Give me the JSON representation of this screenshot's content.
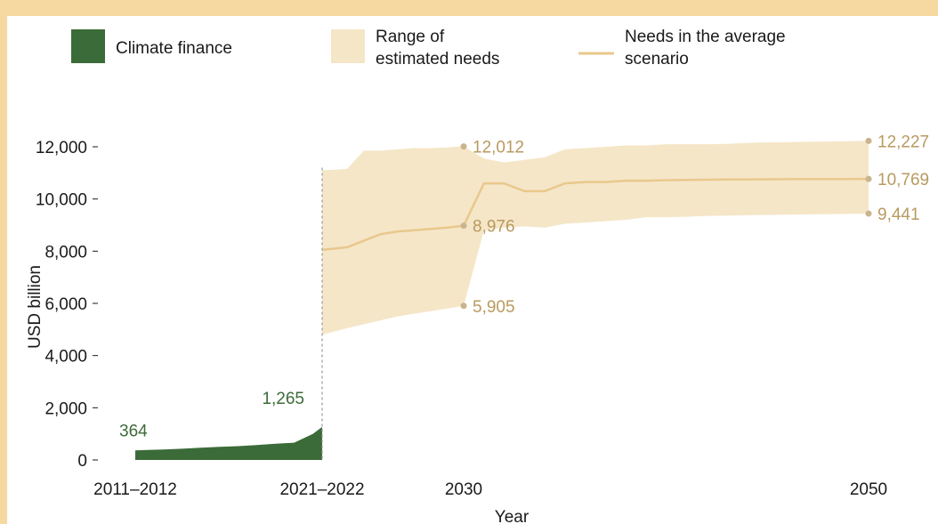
{
  "chart_data": {
    "type": "area",
    "xlabel": "Year",
    "ylabel": "USD billion",
    "ylim": [
      0,
      12000
    ],
    "yticks": [
      "0",
      "2,000",
      "4,000",
      "6,000",
      "8,000",
      "10,000",
      "12,000"
    ],
    "x_categories": [
      "2011–2012",
      "2021–2022",
      "2030",
      "2050"
    ],
    "legend": {
      "placement": "top",
      "items": [
        {
          "label": "Climate finance",
          "color": "#3b6b39",
          "kind": "square"
        },
        {
          "label_lines": [
            "Range of",
            "estimated needs"
          ],
          "color": "#f5e6c8",
          "kind": "square"
        },
        {
          "label_lines": [
            "Needs in the average",
            "scenario"
          ],
          "color": "#e8c88c",
          "kind": "line"
        }
      ]
    },
    "colors": {
      "finance": "#3b6b39",
      "range": "#f5e6c8",
      "average": "#e8c88c",
      "label_green": "#3d6b3a",
      "label_tan": "#b99a5f",
      "marker": "#c9b48d"
    },
    "series": {
      "climate_finance": {
        "x": [
          2011.5,
          2012,
          2013,
          2014,
          2015,
          2016,
          2017,
          2018,
          2019,
          2020,
          2021,
          2021.5
        ],
        "values": [
          364,
          380,
          400,
          430,
          470,
          500,
          530,
          570,
          620,
          660,
          1000,
          1265
        ]
      },
      "range_estimated_needs": {
        "x": [
          2021.5,
          2023,
          2024,
          2025,
          2026,
          2027,
          2028,
          2029,
          2030,
          2031,
          2032,
          2033,
          2034,
          2035,
          2036,
          2037,
          2038,
          2039,
          2040,
          2041,
          2042,
          2043,
          2044,
          2045,
          2046,
          2047,
          2048,
          2049,
          2050
        ],
        "upper": [
          11100,
          11150,
          11850,
          11850,
          11900,
          11950,
          11950,
          11980,
          12012,
          11550,
          11400,
          11500,
          11600,
          11900,
          11950,
          12000,
          12050,
          12050,
          12100,
          12100,
          12100,
          12110,
          12150,
          12170,
          12180,
          12190,
          12200,
          12210,
          12227
        ],
        "lower": [
          4800,
          5050,
          5200,
          5350,
          5500,
          5600,
          5700,
          5800,
          5905,
          8800,
          8900,
          8950,
          8900,
          9050,
          9100,
          9150,
          9200,
          9300,
          9300,
          9320,
          9350,
          9360,
          9380,
          9390,
          9400,
          9410,
          9420,
          9430,
          9441
        ]
      },
      "needs_average_scenario": {
        "x": [
          2021.5,
          2023,
          2024,
          2025,
          2026,
          2027,
          2028,
          2029,
          2030,
          2031,
          2032,
          2033,
          2034,
          2035,
          2036,
          2037,
          2038,
          2039,
          2040,
          2041,
          2042,
          2043,
          2044,
          2045,
          2046,
          2047,
          2048,
          2049,
          2050
        ],
        "values": [
          8050,
          8150,
          8400,
          8650,
          8750,
          8800,
          8850,
          8900,
          8976,
          10600,
          10600,
          10300,
          10300,
          10600,
          10650,
          10650,
          10700,
          10700,
          10720,
          10730,
          10740,
          10750,
          10750,
          10755,
          10760,
          10762,
          10764,
          10766,
          10769
        ]
      }
    },
    "annotations": [
      {
        "text": "364",
        "x": 2011.5,
        "y": 364,
        "color": "green"
      },
      {
        "text": "1,265",
        "x": 2021.5,
        "y": 1265,
        "color": "green"
      },
      {
        "text": "12,012",
        "x": 2030,
        "y": 12012,
        "color": "tan"
      },
      {
        "text": "8,976",
        "x": 2030,
        "y": 8976,
        "color": "tan"
      },
      {
        "text": "5,905",
        "x": 2030,
        "y": 5905,
        "color": "tan"
      },
      {
        "text": "12,227",
        "x": 2050,
        "y": 12227,
        "color": "tan"
      },
      {
        "text": "10,769",
        "x": 2050,
        "y": 10769,
        "color": "tan"
      },
      {
        "text": "9,441",
        "x": 2050,
        "y": 9441,
        "color": "tan"
      }
    ]
  }
}
